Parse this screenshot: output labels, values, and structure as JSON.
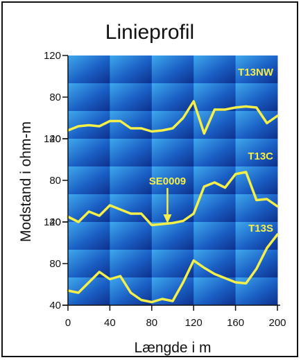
{
  "chart_data": {
    "type": "line",
    "title": "Linieprofil",
    "xlabel": "Længde i m",
    "ylabel": "Modstand i ohm-m",
    "xlim": [
      0,
      200
    ],
    "x_ticks": [
      "0",
      "40",
      "80",
      "120",
      "160",
      "200"
    ],
    "x_tick_values": [
      0,
      40,
      80,
      120,
      160,
      200
    ],
    "grid": false,
    "colors": {
      "line": "#f5ef4a",
      "label": "#f5ef4a",
      "panel_dark": "#0d2f8c",
      "panel_light": "#3fa8ee"
    },
    "panels": [
      {
        "series_label": "T13NW",
        "ylim": [
          40,
          120
        ],
        "y_ticks": [
          "120",
          "80",
          "40"
        ],
        "y_tick_values": [
          120,
          80,
          40
        ],
        "x": [
          0,
          10,
          20,
          30,
          40,
          50,
          60,
          70,
          80,
          90,
          100,
          110,
          120,
          130,
          140,
          150,
          160,
          170,
          180,
          190,
          200
        ],
        "y": [
          48,
          52,
          53,
          52,
          57,
          57,
          50,
          50,
          47,
          48,
          50,
          60,
          76,
          45,
          68,
          68,
          70,
          71,
          70,
          55,
          62
        ]
      },
      {
        "series_label": "T13C",
        "ylim": [
          40,
          120
        ],
        "y_ticks": [
          "120",
          "80",
          "40"
        ],
        "y_tick_values": [
          120,
          80,
          40
        ],
        "x": [
          0,
          10,
          20,
          30,
          40,
          50,
          60,
          70,
          80,
          90,
          100,
          110,
          120,
          130,
          140,
          150,
          160,
          170,
          180,
          190,
          200
        ],
        "y": [
          45,
          40,
          50,
          46,
          56,
          52,
          48,
          48,
          37,
          38,
          39,
          41,
          48,
          74,
          78,
          73,
          86,
          88,
          61,
          62,
          55
        ]
      },
      {
        "series_label": "T13S",
        "ylim": [
          40,
          120
        ],
        "y_ticks": [
          "120",
          "80",
          "40"
        ],
        "y_tick_values": [
          120,
          80,
          40
        ],
        "x": [
          0,
          10,
          20,
          30,
          40,
          50,
          60,
          70,
          80,
          90,
          100,
          110,
          120,
          130,
          140,
          150,
          160,
          170,
          180,
          190,
          200
        ],
        "y": [
          54,
          52,
          62,
          72,
          65,
          68,
          52,
          45,
          43,
          46,
          44,
          62,
          83,
          76,
          70,
          66,
          62,
          61,
          75,
          95,
          108
        ]
      }
    ],
    "annotations": [
      {
        "text": "SE0009",
        "x": 95,
        "y": 38,
        "panel": 1
      }
    ]
  }
}
